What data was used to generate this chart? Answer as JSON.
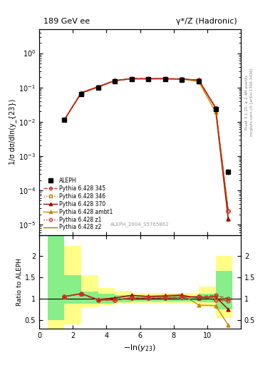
{
  "title_left": "189 GeV ee",
  "title_right": "γ*/Z (Hadronic)",
  "xlabel": "-ln(y_{23})",
  "ylabel_main": "1/σ dσ/dln(y_{23})",
  "ylabel_ratio": "Ratio to ALEPH",
  "right_label": "Rivet 3.1.10; ≥ 2.4M events",
  "right_label2": "mcplots.cern.ch [arXiv:1306.3436]",
  "watermark": "ALEPH_2004_S5765862",
  "x_data": [
    1.5,
    2.5,
    3.5,
    4.5,
    5.5,
    6.5,
    7.5,
    8.5,
    9.5,
    10.5,
    11.25
  ],
  "aleph_y": [
    0.0115,
    0.065,
    0.1,
    0.155,
    0.175,
    0.175,
    0.175,
    0.17,
    0.155,
    0.023,
    0.00035
  ],
  "aleph_yerr": [
    0.001,
    0.004,
    0.006,
    0.008,
    0.008,
    0.008,
    0.008,
    0.008,
    0.008,
    0.002,
    5e-05
  ],
  "pythia_x": [
    1.5,
    2.5,
    3.5,
    4.5,
    5.5,
    6.5,
    7.5,
    8.5,
    9.5,
    10.5,
    11.25
  ],
  "p345_y": [
    0.0115,
    0.068,
    0.102,
    0.157,
    0.178,
    0.178,
    0.179,
    0.174,
    0.163,
    0.025,
    2.5e-05
  ],
  "p346_y": [
    0.0115,
    0.068,
    0.102,
    0.157,
    0.178,
    0.178,
    0.179,
    0.174,
    0.163,
    0.025,
    2.5e-05
  ],
  "p370_y": [
    0.0115,
    0.07,
    0.105,
    0.16,
    0.181,
    0.181,
    0.181,
    0.177,
    0.165,
    0.026,
    1.5e-05
  ],
  "pambt1_y": [
    0.0115,
    0.07,
    0.105,
    0.16,
    0.181,
    0.181,
    0.181,
    0.177,
    0.148,
    0.019,
    1.5e-05
  ],
  "pz1_y": [
    0.0115,
    0.068,
    0.102,
    0.157,
    0.178,
    0.178,
    0.179,
    0.174,
    0.163,
    0.025,
    2.5e-05
  ],
  "pz2_y": [
    0.0115,
    0.068,
    0.102,
    0.157,
    0.178,
    0.178,
    0.179,
    0.174,
    0.163,
    0.025,
    2.5e-05
  ],
  "ratio_x": [
    1.5,
    2.5,
    3.5,
    4.5,
    5.5,
    6.5,
    7.5,
    8.5,
    9.5,
    10.5,
    11.25
  ],
  "ratio_345": [
    1.05,
    1.12,
    0.97,
    0.97,
    1.02,
    1.01,
    1.02,
    1.03,
    1.05,
    1.08,
    1.0
  ],
  "ratio_346": [
    1.05,
    1.12,
    0.97,
    0.97,
    1.02,
    1.01,
    1.02,
    1.03,
    1.05,
    1.01,
    1.0
  ],
  "ratio_370": [
    1.05,
    1.12,
    0.98,
    1.02,
    1.08,
    1.05,
    1.06,
    1.08,
    1.02,
    1.05,
    0.75
  ],
  "ratio_ambt1": [
    1.05,
    1.12,
    0.98,
    1.02,
    1.08,
    1.06,
    1.08,
    1.1,
    0.85,
    0.84,
    0.38
  ],
  "ratio_z1": [
    1.05,
    1.12,
    0.97,
    0.97,
    1.02,
    1.01,
    1.02,
    1.03,
    1.05,
    0.97,
    0.95
  ],
  "ratio_z2": [
    1.05,
    1.12,
    0.97,
    0.97,
    1.02,
    1.01,
    1.02,
    1.03,
    1.05,
    0.97,
    0.95
  ],
  "band_edges": [
    0.5,
    1.5,
    2.5,
    3.5,
    4.5,
    5.5,
    6.5,
    7.5,
    8.5,
    9.5,
    10.5,
    11.5
  ],
  "band_yellow_lo": [
    0.3,
    0.4,
    0.8,
    0.85,
    0.88,
    0.9,
    0.9,
    0.9,
    0.9,
    0.82,
    0.55,
    0.3
  ],
  "band_yellow_hi": [
    2.5,
    2.25,
    1.55,
    1.25,
    1.18,
    1.14,
    1.14,
    1.14,
    1.14,
    1.28,
    2.0,
    2.5
  ],
  "band_green_lo": [
    0.5,
    0.88,
    0.88,
    0.88,
    0.92,
    0.93,
    0.93,
    0.93,
    0.93,
    0.92,
    0.75,
    0.5
  ],
  "band_green_hi": [
    2.5,
    1.55,
    1.17,
    1.12,
    1.08,
    1.07,
    1.07,
    1.07,
    1.07,
    1.12,
    1.65,
    2.5
  ],
  "ylim_main": [
    5e-06,
    5.0
  ],
  "ylim_ratio": [
    0.3,
    2.5
  ],
  "xlim": [
    0.5,
    12.0
  ],
  "xticks": [
    0,
    2,
    4,
    6,
    8,
    10
  ],
  "color_345": "#cc3333",
  "color_346": "#cc7700",
  "color_370": "#aa0000",
  "color_ambt1": "#cc8800",
  "color_z1": "#cc3333",
  "color_z2": "#888800",
  "bg_color": "#ffffff"
}
